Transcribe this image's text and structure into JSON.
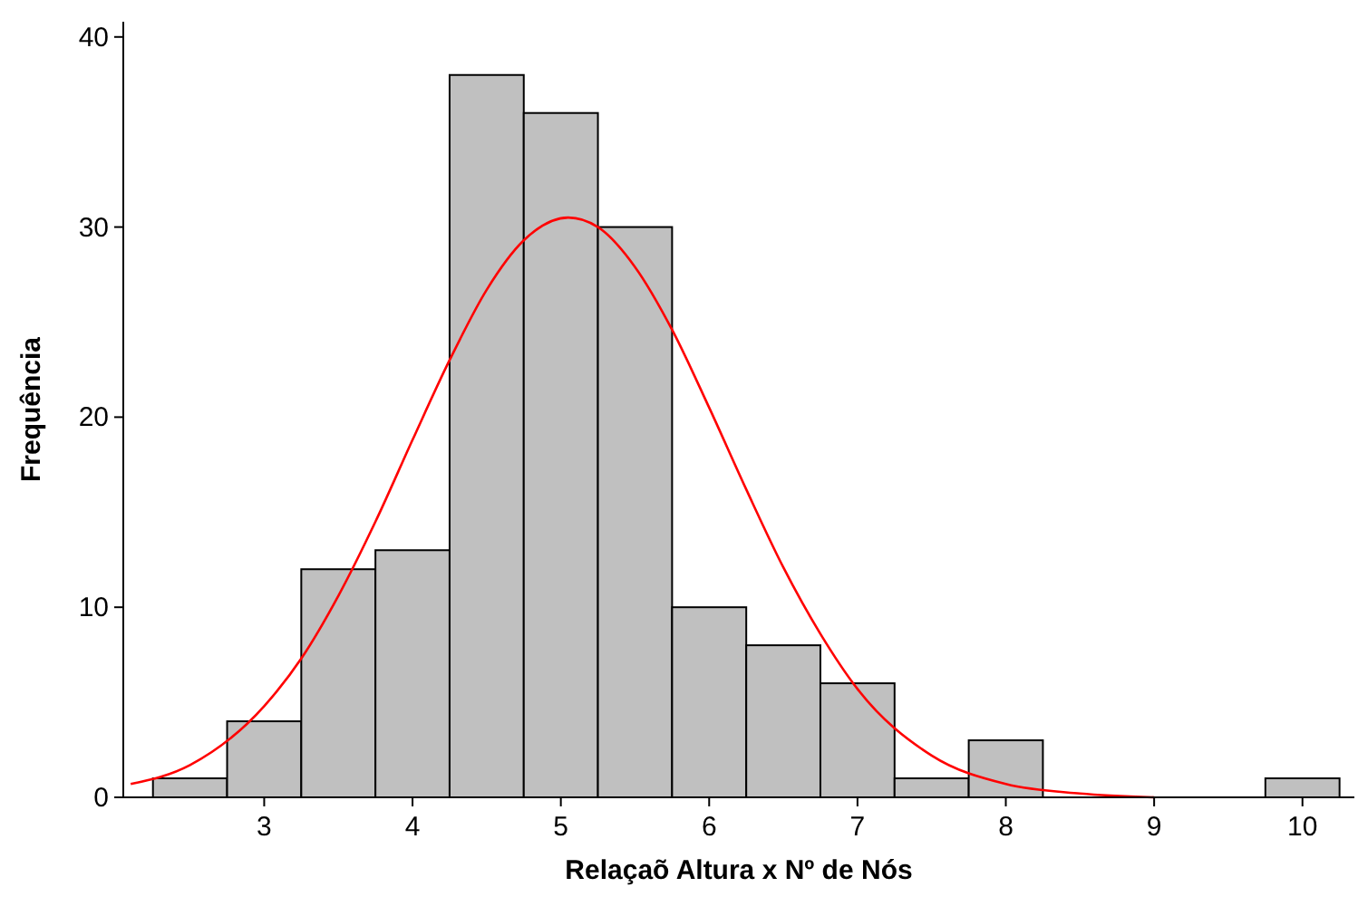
{
  "chart_data": {
    "type": "histogram",
    "xlabel": "Relaçaõ Altura x Nº de Nós",
    "ylabel": "Frequência",
    "xlim": [
      2.05,
      10.35
    ],
    "xticks": [
      3,
      4,
      5,
      6,
      7,
      8,
      9,
      10
    ],
    "ylim": [
      0,
      40.8
    ],
    "yticks": [
      0,
      10,
      20,
      30,
      40
    ],
    "grid": false,
    "series": [
      {
        "color": "#c0c0c0",
        "bins": [
          2.25,
          2.75,
          3.25,
          3.75,
          4.25,
          4.75,
          5.25,
          5.75,
          6.25,
          6.75,
          7.25,
          7.75,
          8.25,
          8.75,
          9.25,
          9.75,
          10.25
        ],
        "values": [
          1,
          4,
          12,
          13,
          38,
          36,
          30,
          10,
          8,
          6,
          1,
          3,
          0,
          0,
          0,
          1
        ]
      },
      {
        "type": "line",
        "color": "#ff0000",
        "x": [
          2.1,
          2.5,
          3.0,
          3.25,
          3.5,
          3.75,
          4.0,
          4.25,
          4.5,
          4.75,
          5.05,
          5.25,
          5.5,
          5.75,
          6.0,
          6.25,
          6.5,
          6.75,
          7.0,
          7.5,
          8.0,
          8.5,
          9.0
        ],
        "values": [
          0.7,
          1.7,
          4.8,
          7.3,
          10.6,
          14.5,
          18.8,
          23.0,
          26.7,
          29.3,
          30.5,
          30.0,
          27.9,
          24.6,
          20.5,
          16.2,
          12.1,
          8.6,
          5.7,
          2.2,
          0.7,
          0.2,
          0.0
        ]
      }
    ]
  }
}
